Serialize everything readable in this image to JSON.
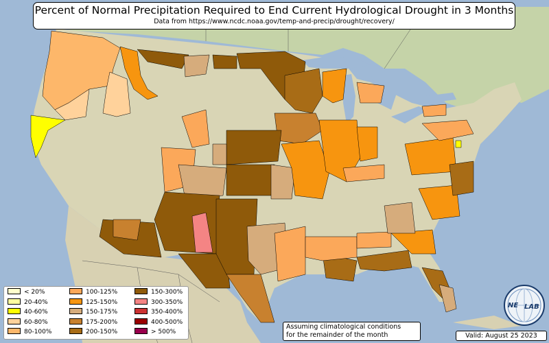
{
  "header": {
    "title": "Percent of Normal Precipitation Required to End Current Hydrological Drought in 3 Months",
    "subtitle": "Data from https://www.ncdc.noaa.gov/temp-and-precip/drought/recovery/"
  },
  "legend": {
    "items": [
      {
        "label": "< 20%",
        "color": "#ffffcc"
      },
      {
        "label": "20-40%",
        "color": "#ffffa0"
      },
      {
        "label": "40-60%",
        "color": "#ffff00"
      },
      {
        "label": "60-80%",
        "color": "#ffd29b"
      },
      {
        "label": "80-100%",
        "color": "#fdb76a"
      },
      {
        "label": "100-125%",
        "color": "#fba85a"
      },
      {
        "label": "125-150%",
        "color": "#f7950f"
      },
      {
        "label": "150-175%",
        "color": "#d6ac7c"
      },
      {
        "label": "175-200%",
        "color": "#c8812f"
      },
      {
        "label": "200-150%",
        "color": "#a86c16"
      },
      {
        "label": "150-300%",
        "color": "#8f5a0a"
      },
      {
        "label": "300-350%",
        "color": "#f48484"
      },
      {
        "label": "350-400%",
        "color": "#cc3333"
      },
      {
        "label": "400-500%",
        "color": "#990000"
      },
      {
        "label": "> 500%",
        "color": "#99004c"
      }
    ]
  },
  "footer": {
    "note_line1": "Assuming climatological conditions",
    "note_line2": "for the remainder of the month",
    "valid": "Valid: August 25 2023"
  },
  "logo": {
    "text_left": "NE",
    "text_right": "LAB"
  },
  "colors": {
    "ocean": "#9fb9d6",
    "land": "#d9d5b7",
    "canada": "#c9d6b0"
  }
}
